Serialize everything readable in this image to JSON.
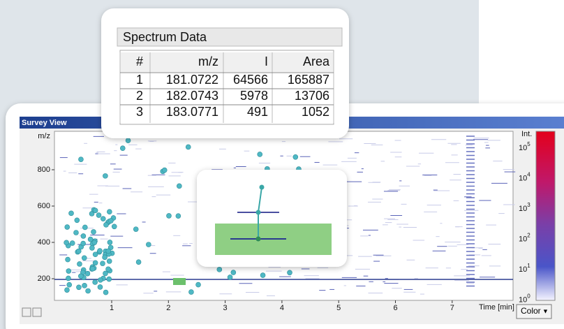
{
  "spectrum_data": {
    "title": "Spectrum Data",
    "columns": [
      "#",
      "m/z",
      "I",
      "Area"
    ],
    "rows": [
      [
        "1",
        "181.0722",
        "64566",
        "165887"
      ],
      [
        "2",
        "182.0743",
        "5978",
        "13706"
      ],
      [
        "3",
        "183.0771",
        "491",
        "1052"
      ]
    ]
  },
  "survey_view": {
    "title": "Survey View",
    "y_label": "m/z",
    "y_ticks": [
      "200",
      "400",
      "600",
      "800"
    ],
    "x_ticks": [
      "1",
      "2",
      "3",
      "4",
      "5",
      "6",
      "7"
    ],
    "x_label": "Time [min]",
    "intensity_label": "Int.",
    "color_ticks": [
      {
        "base": "10",
        "exponent": "5"
      },
      {
        "base": "10",
        "exponent": "4"
      },
      {
        "base": "10",
        "exponent": "3"
      },
      {
        "base": "10",
        "exponent": "2"
      },
      {
        "base": "10",
        "exponent": "1"
      },
      {
        "base": "10",
        "exponent": "0"
      }
    ],
    "color_button": "Color"
  }
}
